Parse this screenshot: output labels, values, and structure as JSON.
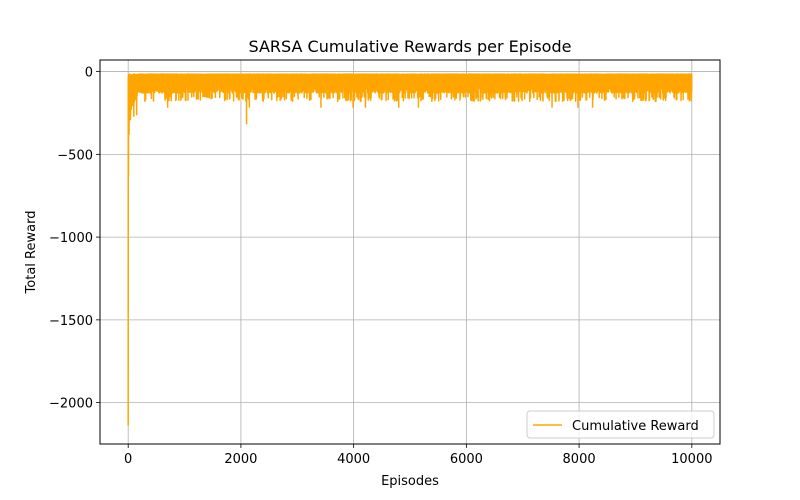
{
  "chart_data": {
    "type": "line",
    "title": "SARSA Cumulative Rewards per Episode",
    "xlabel": "Episodes",
    "ylabel": "Total Reward",
    "xlim": [
      -500,
      10500
    ],
    "ylim": [
      -2250,
      70
    ],
    "xticks": [
      0,
      2000,
      4000,
      6000,
      8000,
      10000
    ],
    "xtick_labels": [
      "0",
      "2000",
      "4000",
      "6000",
      "8000",
      "10000"
    ],
    "yticks": [
      0,
      -500,
      -1000,
      -1500,
      -2000
    ],
    "ytick_labels": [
      "0",
      "−500",
      "−1000",
      "−1500",
      "−2000"
    ],
    "grid": true,
    "legend_position": "bottom-right",
    "series": [
      {
        "name": "Cumulative Reward",
        "color": "#ffa500",
        "episodes": 10000,
        "key_points": [
          {
            "x": 0,
            "y": -2140
          },
          {
            "x": 5,
            "y": -630
          },
          {
            "x": 15,
            "y": -380
          },
          {
            "x": 40,
            "y": -290
          },
          {
            "x": 100,
            "y": -270
          },
          {
            "x": 150,
            "y": -260
          },
          {
            "x": 700,
            "y": -215
          },
          {
            "x": 2100,
            "y": -315
          },
          {
            "x": 2150,
            "y": -215
          },
          {
            "x": 3420,
            "y": -215
          },
          {
            "x": 3990,
            "y": -215
          },
          {
            "x": 4210,
            "y": -215
          },
          {
            "x": 4800,
            "y": -215
          },
          {
            "x": 5150,
            "y": -215
          },
          {
            "x": 7520,
            "y": -215
          },
          {
            "x": 7980,
            "y": -215
          },
          {
            "x": 8240,
            "y": -215
          },
          {
            "x": 9999,
            "y": -15
          }
        ],
        "typical_range": [
          -130,
          -15
        ]
      }
    ]
  }
}
